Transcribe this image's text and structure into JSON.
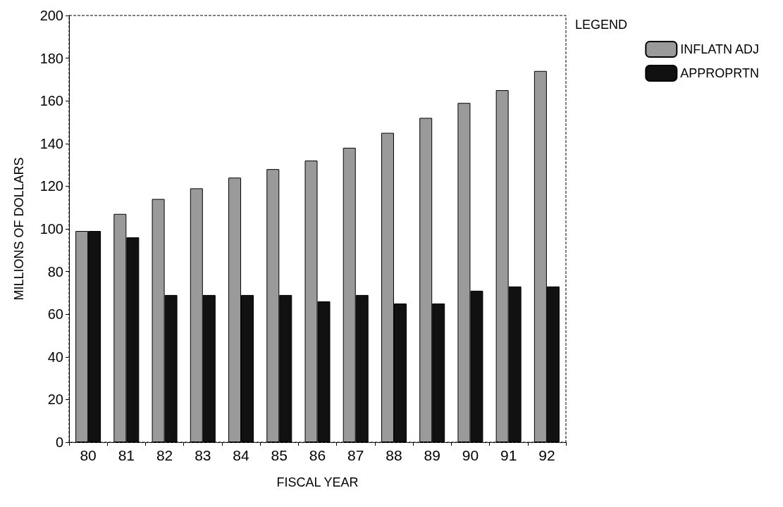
{
  "chart_data": {
    "type": "bar",
    "xlabel": "FISCAL YEAR",
    "ylabel": "MILLIONS OF DOLLARS",
    "legend_title": "LEGEND",
    "legend": "top right",
    "categories": [
      "80",
      "81",
      "82",
      "83",
      "84",
      "85",
      "86",
      "87",
      "88",
      "89",
      "90",
      "91",
      "92"
    ],
    "series": [
      {
        "name": "INFLATN ADJ",
        "color": "#9a9a9a",
        "values": [
          99,
          107,
          114,
          119,
          124,
          128,
          132,
          138,
          145,
          152,
          159,
          165,
          174
        ]
      },
      {
        "name": "APPROPRTN",
        "color": "#111111",
        "values": [
          99,
          96,
          69,
          69,
          69,
          69,
          66,
          69,
          65,
          65,
          71,
          73,
          73
        ]
      }
    ],
    "ylim": [
      0,
      200
    ],
    "yticks": [
      0,
      20,
      40,
      60,
      80,
      100,
      120,
      140,
      160,
      180,
      200
    ],
    "grid": false
  }
}
